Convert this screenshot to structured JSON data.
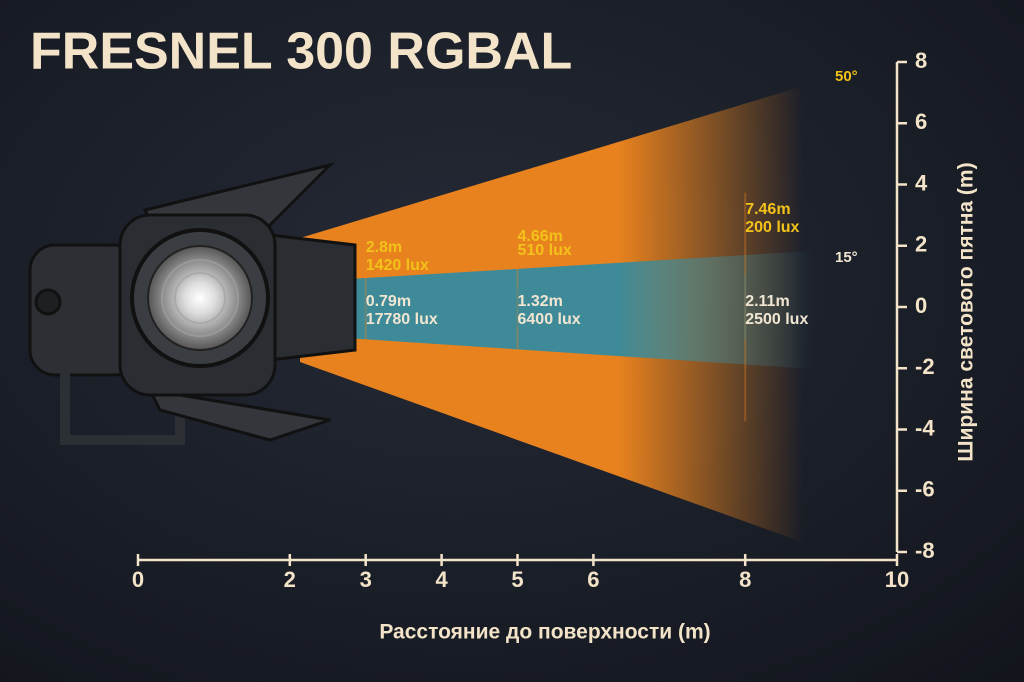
{
  "chart_data": {
    "type": "beam",
    "title": "FRESNEL 300 RGBAL",
    "x_label": "Расстояние до поверхности (m)",
    "y_label": "Ширина светового пятна (m)",
    "xlim": [
      0,
      10
    ],
    "xticks": [
      0,
      2,
      3,
      4,
      5,
      6,
      8,
      10
    ],
    "ylim": [
      -8,
      8
    ],
    "yticks": [
      -8,
      -6,
      -4,
      -2,
      0,
      2,
      4,
      6,
      8
    ],
    "distances": [
      3,
      5,
      8
    ],
    "series": [
      {
        "name": "50°",
        "color": "#e8821e",
        "label_color": "#f2c21a",
        "values": [
          2.8,
          4.66,
          7.46
        ],
        "value_labels": [
          "2.8m",
          "4.66m",
          "7.46m"
        ],
        "lux": [
          1420,
          510,
          200
        ],
        "lux_labels": [
          "1420 lux",
          "510 lux",
          "200 lux"
        ]
      },
      {
        "name": "15°",
        "color": "#3e8a98",
        "label_color": "#f1e6d2",
        "values": [
          0.79,
          1.32,
          2.11
        ],
        "value_labels": [
          "0.79m",
          "1.32m",
          "2.11m"
        ],
        "lux": [
          17780,
          6400,
          2500
        ],
        "lux_labels": [
          "17780 lux",
          "6400 lux",
          "2500 lux"
        ]
      }
    ]
  }
}
